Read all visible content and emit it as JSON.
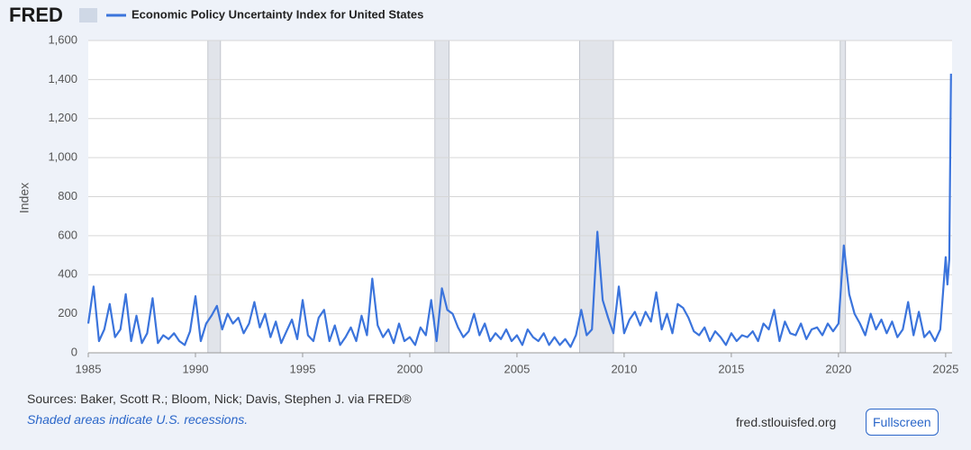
{
  "header": {
    "logo": "FRED"
  },
  "footer": {
    "sources": "Sources: Baker, Scott R.; Bloom, Nick; Davis, Stephen J. via FRED®",
    "note": "Shaded areas indicate U.S. recessions.",
    "url": "fred.stlouisfed.org",
    "button": "Fullscreen"
  },
  "chart_data": {
    "type": "line",
    "ylabel": "Index",
    "x": [
      1985,
      1985.25,
      1985.5,
      1985.75,
      1986,
      1986.25,
      1986.5,
      1986.75,
      1987,
      1987.25,
      1987.5,
      1987.75,
      1988,
      1988.25,
      1988.5,
      1988.75,
      1989,
      1989.25,
      1989.5,
      1989.75,
      1990,
      1990.25,
      1990.5,
      1990.75,
      1991,
      1991.25,
      1991.5,
      1991.75,
      1992,
      1992.25,
      1992.5,
      1992.75,
      1993,
      1993.25,
      1993.5,
      1993.75,
      1994,
      1994.25,
      1994.5,
      1994.75,
      1995,
      1995.25,
      1995.5,
      1995.75,
      1996,
      1996.25,
      1996.5,
      1996.75,
      1997,
      1997.25,
      1997.5,
      1997.75,
      1998,
      1998.25,
      1998.5,
      1998.75,
      1999,
      1999.25,
      1999.5,
      1999.75,
      2000,
      2000.25,
      2000.5,
      2000.75,
      2001,
      2001.25,
      2001.5,
      2001.75,
      2002,
      2002.25,
      2002.5,
      2002.75,
      2003,
      2003.25,
      2003.5,
      2003.75,
      2004,
      2004.25,
      2004.5,
      2004.75,
      2005,
      2005.25,
      2005.5,
      2005.75,
      2006,
      2006.25,
      2006.5,
      2006.75,
      2007,
      2007.25,
      2007.5,
      2007.75,
      2008,
      2008.25,
      2008.5,
      2008.75,
      2009,
      2009.25,
      2009.5,
      2009.75,
      2010,
      2010.25,
      2010.5,
      2010.75,
      2011,
      2011.25,
      2011.5,
      2011.75,
      2012,
      2012.25,
      2012.5,
      2012.75,
      2013,
      2013.25,
      2013.5,
      2013.75,
      2014,
      2014.25,
      2014.5,
      2014.75,
      2015,
      2015.25,
      2015.5,
      2015.75,
      2016,
      2016.25,
      2016.5,
      2016.75,
      2017,
      2017.25,
      2017.5,
      2017.75,
      2018,
      2018.25,
      2018.5,
      2018.75,
      2019,
      2019.25,
      2019.5,
      2019.75,
      2020,
      2020.25,
      2020.5,
      2020.75,
      2021,
      2021.25,
      2021.5,
      2021.75,
      2022,
      2022.25,
      2022.5,
      2022.75,
      2023,
      2023.25,
      2023.5,
      2023.75,
      2024,
      2024.25,
      2024.5,
      2024.75,
      2025,
      2025.08,
      2025.17,
      2025.25
    ],
    "series": [
      {
        "name": "Economic Policy Uncertainty Index for United States",
        "color": "#3b74dc",
        "values": [
          150,
          340,
          60,
          120,
          250,
          80,
          120,
          300,
          60,
          190,
          50,
          100,
          280,
          50,
          90,
          70,
          100,
          60,
          40,
          110,
          290,
          60,
          150,
          190,
          240,
          120,
          200,
          150,
          180,
          100,
          150,
          260,
          130,
          200,
          80,
          160,
          50,
          110,
          170,
          70,
          270,
          90,
          60,
          180,
          220,
          60,
          140,
          40,
          80,
          130,
          60,
          190,
          90,
          380,
          140,
          80,
          120,
          50,
          150,
          60,
          80,
          40,
          130,
          90,
          270,
          60,
          330,
          220,
          200,
          130,
          80,
          110,
          200,
          90,
          150,
          60,
          100,
          70,
          120,
          60,
          90,
          40,
          120,
          80,
          60,
          100,
          40,
          80,
          40,
          70,
          30,
          90,
          220,
          90,
          120,
          620,
          270,
          180,
          100,
          340,
          100,
          170,
          210,
          140,
          210,
          160,
          310,
          120,
          200,
          100,
          250,
          230,
          180,
          110,
          90,
          130,
          60,
          110,
          80,
          40,
          100,
          60,
          90,
          80,
          110,
          60,
          150,
          120,
          220,
          60,
          160,
          100,
          90,
          150,
          70,
          120,
          130,
          90,
          150,
          110,
          150,
          550,
          300,
          200,
          150,
          90,
          200,
          120,
          170,
          100,
          160,
          80,
          120,
          260,
          90,
          210,
          80,
          110,
          60,
          120,
          490,
          350,
          480,
          1430
        ]
      }
    ],
    "recessions": [
      [
        1990.58,
        1991.17
      ],
      [
        2001.17,
        2001.83
      ],
      [
        2007.92,
        2009.5
      ],
      [
        2020.08,
        2020.33
      ]
    ],
    "xlim": [
      1985,
      2025.3
    ],
    "xticks": [
      1985,
      1990,
      1995,
      2000,
      2005,
      2010,
      2015,
      2020,
      2025
    ],
    "ylim": [
      0,
      1600
    ],
    "yticks": [
      0,
      200,
      400,
      600,
      800,
      {
        "value": 1000,
        "label": "1,000"
      },
      {
        "value": 1200,
        "label": "1,200"
      },
      {
        "value": 1400,
        "label": "1,400"
      },
      {
        "value": 1600,
        "label": "1,600"
      }
    ],
    "grid": true
  }
}
